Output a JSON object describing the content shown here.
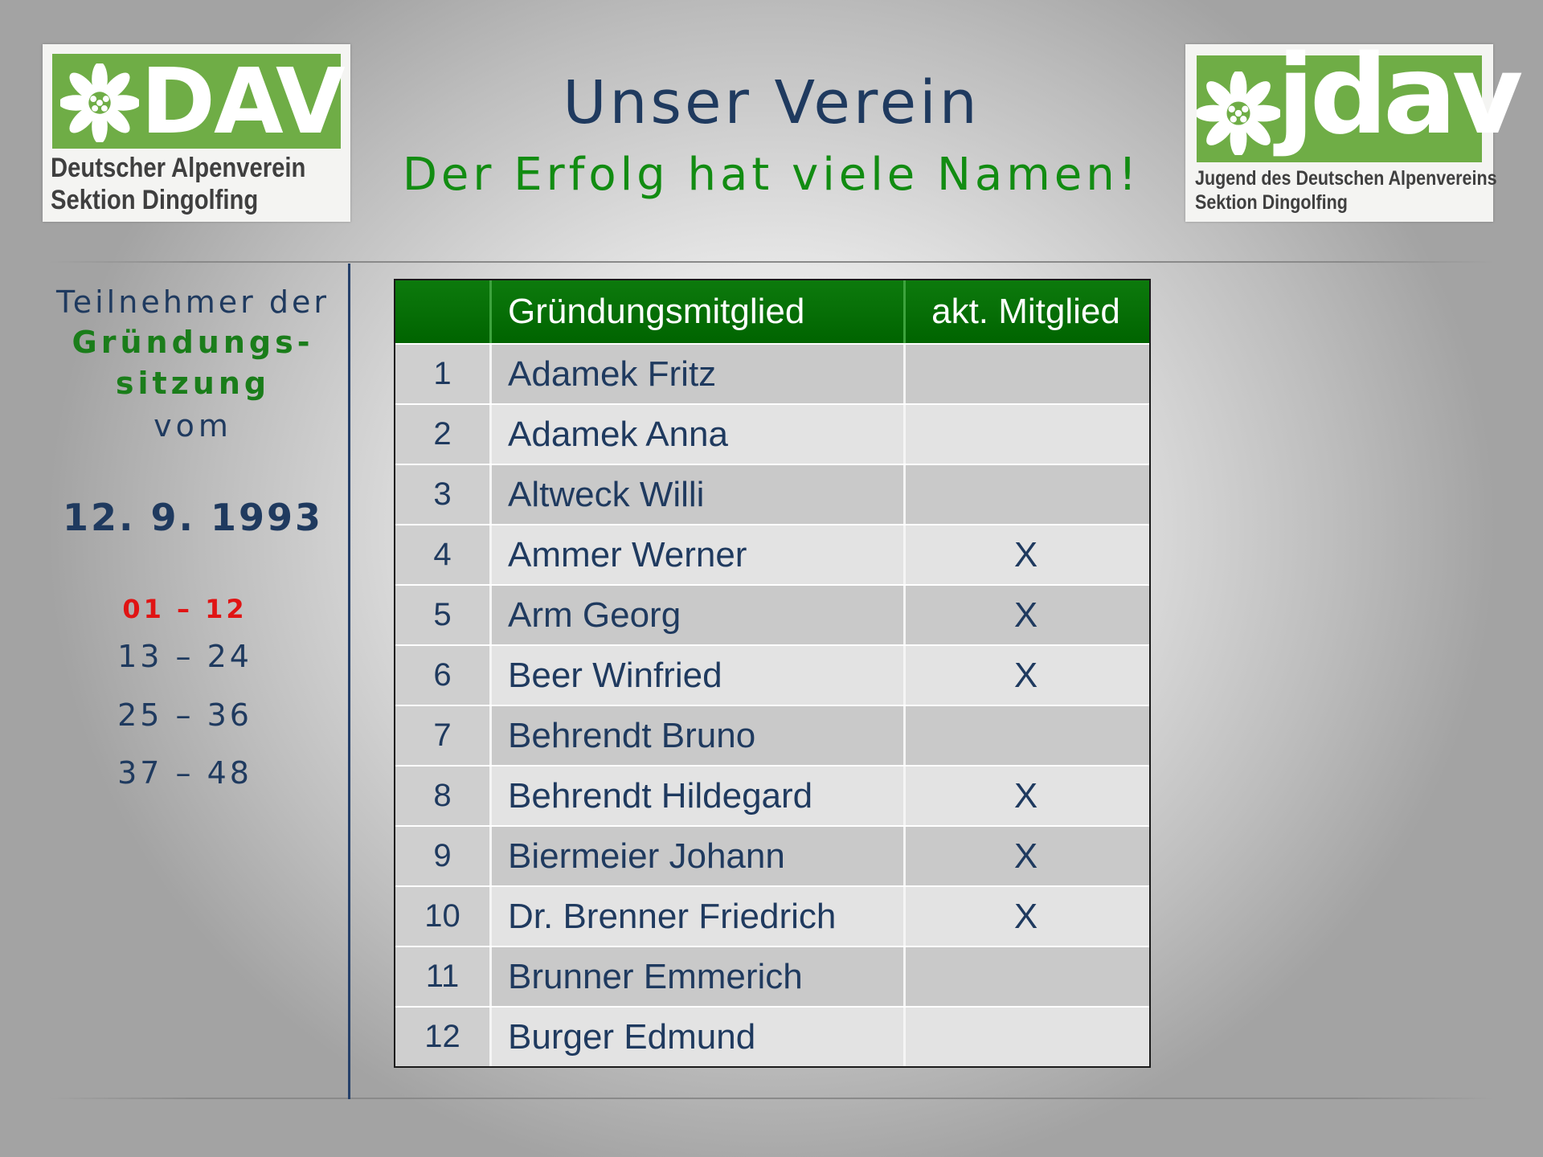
{
  "logos": {
    "dav": {
      "mark": "DAV",
      "line1": "Deutscher Alpenverein",
      "line2": "Sektion Dingolfing"
    },
    "jdav": {
      "mark": "jdav",
      "line1": "Jugend des Deutschen Alpenvereins",
      "line2": "Sektion Dingolfing"
    }
  },
  "header": {
    "title": "Unser Verein",
    "subtitle": "Der Erfolg hat viele Namen!"
  },
  "left_panel": {
    "line1": "Teilnehmer der",
    "line2": "Gründungs-",
    "line3": "sitzung",
    "line4": "vom",
    "date": "12.  9. 1993",
    "ranges": [
      "01  –  12",
      "13 – 24",
      "25 – 36",
      "37 – 48"
    ]
  },
  "table": {
    "headers": [
      "",
      "Gründungsmitglied",
      "akt. Mitglied"
    ],
    "rows": [
      {
        "num": "1",
        "name": "Adamek Fritz",
        "active": ""
      },
      {
        "num": "2",
        "name": "Adamek Anna",
        "active": ""
      },
      {
        "num": "3",
        "name": "Altweck Willi",
        "active": ""
      },
      {
        "num": "4",
        "name": "Ammer Werner",
        "active": "X"
      },
      {
        "num": "5",
        "name": "Arm Georg",
        "active": "X"
      },
      {
        "num": "6",
        "name": "Beer Winfried",
        "active": "X"
      },
      {
        "num": "7",
        "name": "Behrendt Bruno",
        "active": ""
      },
      {
        "num": "8",
        "name": "Behrendt Hildegard",
        "active": "X"
      },
      {
        "num": "9",
        "name": "Biermeier Johann",
        "active": "X"
      },
      {
        "num": "10",
        "name": "Dr. Brenner Friedrich",
        "active": "X"
      },
      {
        "num": "11",
        "name": "Brunner Emmerich",
        "active": ""
      },
      {
        "num": "12",
        "name": "Burger Edmund",
        "active": ""
      }
    ]
  },
  "colors": {
    "brand_green": "#6fad46",
    "header_green": "#006400",
    "navy": "#1f3a5f",
    "accent_red": "#e01414"
  }
}
